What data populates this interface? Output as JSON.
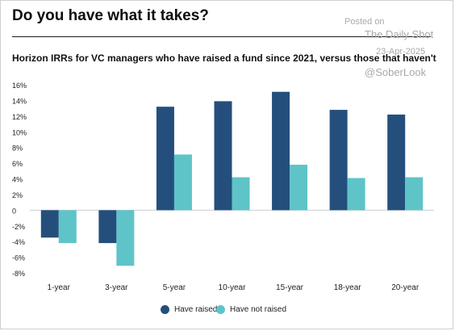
{
  "title": "Do you have what it takes?",
  "subtitle": "Horizon IRRs for VC managers who have raised a fund since 2021, versus those that haven't",
  "watermark": {
    "line1": "Posted on",
    "line2": "The Daily Shot",
    "line3": "23-Apr-2025",
    "line4": "@SoberLook"
  },
  "colors": {
    "have_raised": "#244f7c",
    "have_not_raised": "#5ec4c8",
    "zero_line": "#c9cfd6"
  },
  "chart_data": {
    "type": "bar",
    "categories": [
      "1-year",
      "3-year",
      "5-year",
      "10-year",
      "15-year",
      "18-year",
      "20-year"
    ],
    "series": [
      {
        "name": "Have raised",
        "values": [
          -3.5,
          -4.2,
          13.2,
          13.9,
          15.1,
          12.8,
          12.2
        ]
      },
      {
        "name": "Have not raised",
        "values": [
          -4.2,
          -7.1,
          7.1,
          4.2,
          5.8,
          4.1,
          4.2
        ]
      }
    ],
    "ylim": [
      -8,
      16
    ],
    "yticks": [
      {
        "value": 16,
        "label": "16%"
      },
      {
        "value": 14,
        "label": "14%"
      },
      {
        "value": 12,
        "label": "12%"
      },
      {
        "value": 10,
        "label": "10%"
      },
      {
        "value": 8,
        "label": "8%"
      },
      {
        "value": 6,
        "label": "6%"
      },
      {
        "value": 4,
        "label": "4%"
      },
      {
        "value": 2,
        "label": "2%"
      },
      {
        "value": 0,
        "label": "0"
      },
      {
        "value": -2,
        "label": "-2%"
      },
      {
        "value": -4,
        "label": "-4%"
      },
      {
        "value": -6,
        "label": "-6%"
      },
      {
        "value": -8,
        "label": "-8%"
      }
    ],
    "grid": false,
    "legend_position": "bottom-center"
  }
}
